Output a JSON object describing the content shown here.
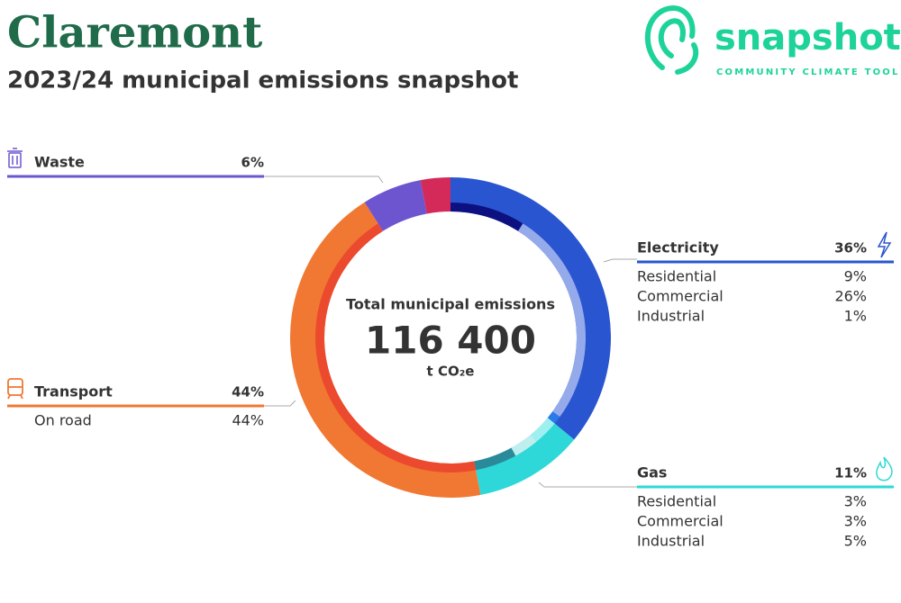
{
  "header": {
    "title": "Claremont",
    "subtitle": "2023/24 municipal emissions snapshot"
  },
  "logo": {
    "name": "snapshot",
    "tagline": "COMMUNITY CLIMATE TOOL"
  },
  "chart_data": {
    "type": "donut",
    "center_label": "Total municipal emissions",
    "total": 116400,
    "total_label": "116 400",
    "unit": "t CO₂e",
    "categories": [
      "Electricity",
      "Gas",
      "Transport",
      "Waste",
      null
    ],
    "values": [
      36,
      11,
      44,
      6,
      3
    ],
    "value_labels": [
      "36%",
      "11%",
      "44%",
      "6%",
      null
    ],
    "colors": [
      "#2a55d0",
      "#2ed8d8",
      "#f07832",
      "#6e55d0",
      "#d42a5a"
    ],
    "subseries": [
      {
        "categories": [
          "Residential",
          "Commercial",
          "Industrial"
        ],
        "values": [
          9,
          26,
          1
        ],
        "value_labels": [
          "9%",
          "26%",
          "1%"
        ],
        "colors": [
          "#0d1080",
          "#95aaea",
          "#2a7ae8"
        ]
      },
      {
        "categories": [
          "Residential",
          "Commercial",
          "Industrial"
        ],
        "values": [
          3,
          3,
          5
        ],
        "value_labels": [
          "3%",
          "3%",
          "5%"
        ],
        "colors": [
          "#9ef0f0",
          "#bfeeee",
          "#2a8a9a"
        ]
      },
      {
        "categories": [
          "On road"
        ],
        "values": [
          44
        ],
        "value_labels": [
          "44%"
        ],
        "colors": [
          "#ec4a2e"
        ]
      },
      null,
      null
    ]
  }
}
